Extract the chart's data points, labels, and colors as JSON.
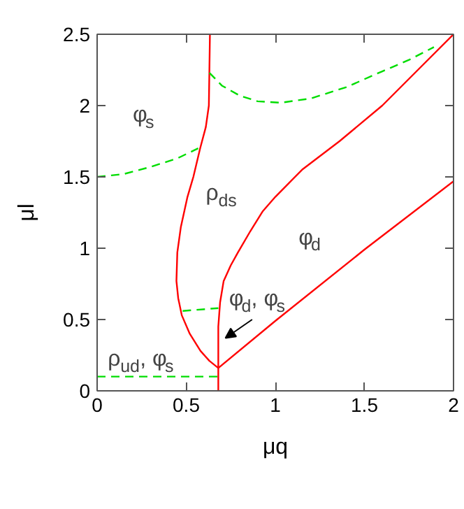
{
  "chart_data": {
    "type": "line",
    "xlabel": "μq",
    "ylabel": "μl",
    "xlim": [
      0,
      2
    ],
    "ylim": [
      0,
      2.5
    ],
    "xticks": [
      0,
      0.5,
      1,
      1.5,
      2
    ],
    "yticks": [
      0,
      0.5,
      1,
      1.5,
      2,
      2.5
    ],
    "grid": false,
    "series": [
      {
        "color": "#ff0000",
        "line_style": "solid",
        "x": [
          0.633,
          0.627,
          0.61,
          0.578,
          0.54,
          0.507,
          0.47,
          0.45,
          0.445,
          0.455,
          0.475,
          0.52,
          0.58,
          0.63,
          0.68
        ],
        "values": [
          2.5,
          2.0,
          1.85,
          1.7,
          1.5,
          1.36,
          1.15,
          0.97,
          0.77,
          0.65,
          0.53,
          0.4,
          0.28,
          0.21,
          0.16
        ]
      },
      {
        "color": "#ff0000",
        "line_style": "solid",
        "x": [
          0.68,
          0.68,
          0.68,
          0.69,
          0.71,
          0.75,
          0.79,
          0.86,
          0.93,
          1.0,
          1.15,
          1.36,
          1.6,
          1.8,
          2.0
        ],
        "values": [
          0.0,
          0.16,
          0.45,
          0.62,
          0.77,
          0.88,
          0.97,
          1.12,
          1.26,
          1.36,
          1.55,
          1.75,
          2.0,
          2.25,
          2.5
        ]
      },
      {
        "color": "#ff0000",
        "line_style": "solid",
        "x": [
          0.68,
          1.0,
          1.5,
          2.0
        ],
        "values": [
          0.16,
          0.49,
          0.99,
          1.47
        ]
      },
      {
        "color": "#00dd00",
        "line_style": "dashed",
        "x": [
          0.0,
          0.15,
          0.3,
          0.45,
          0.567
        ],
        "values": [
          1.5,
          1.52,
          1.57,
          1.63,
          1.7
        ]
      },
      {
        "color": "#00dd00",
        "line_style": "dashed",
        "x": [
          0.63,
          0.7,
          0.8,
          0.9,
          1.03,
          1.2,
          1.4,
          1.6,
          1.75,
          1.89
        ],
        "values": [
          2.23,
          2.14,
          2.07,
          2.03,
          2.02,
          2.05,
          2.13,
          2.24,
          2.32,
          2.41
        ]
      },
      {
        "color": "#00dd00",
        "line_style": "dashed",
        "x": [
          0.48,
          0.68
        ],
        "values": [
          0.56,
          0.58
        ]
      },
      {
        "color": "#00dd00",
        "line_style": "dashed",
        "x": [
          0.0,
          0.68
        ],
        "values": [
          0.1,
          0.1
        ]
      }
    ],
    "annotations": [
      "φ$_{s}$",
      "ρ$_{ds}$",
      "φ$_{d}$",
      "φ$_{d}$, φ$_{s}$",
      "ρ$_{ud}$, φ$_{s}$"
    ]
  }
}
